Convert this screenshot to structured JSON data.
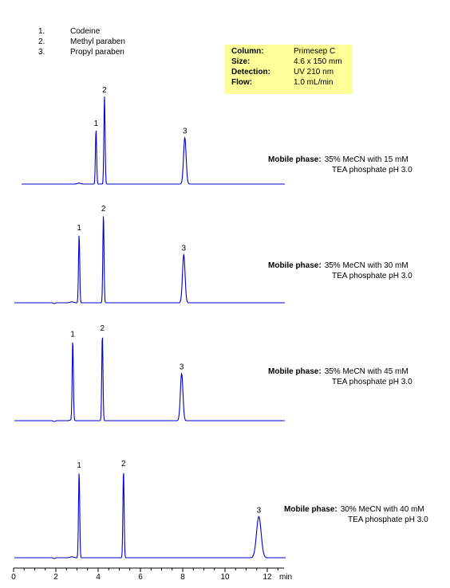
{
  "legend": [
    {
      "num": "1.",
      "name": "Codeine"
    },
    {
      "num": "2.",
      "name": "Methyl paraben"
    },
    {
      "num": "3.",
      "name": "Propyl paraben"
    }
  ],
  "conditions": [
    {
      "key": "Column:",
      "value": "Primesep C"
    },
    {
      "key": "Size:",
      "value": "4.6 x 150 mm"
    },
    {
      "key": "Detection:",
      "value": "UV 210 nm"
    },
    {
      "key": "Flow:",
      "value": "1.0 mL/min"
    }
  ],
  "colors": {
    "trace": "#0000cc",
    "peak_label": "#000000",
    "box": "#ffff99"
  },
  "chart_data": {
    "type": "line",
    "xlabel": "min",
    "xlim": [
      0,
      12.6
    ],
    "x_ticks": [
      "0",
      "2",
      "4",
      "6",
      "8",
      "10",
      "12"
    ],
    "grid": false,
    "series": [
      {
        "mobile_phase_label": "Mobile phase:",
        "mobile_phase_line1": "35% MeCN with 15 mM",
        "mobile_phase_line2": "TEA phosphate pH 3.0",
        "peaks": [
          {
            "label": "1",
            "rt": 3.9,
            "height": 0.62
          },
          {
            "label": "2",
            "rt": 4.3,
            "height": 1.0
          },
          {
            "label": "3",
            "rt": 8.1,
            "height": 0.53
          }
        ]
      },
      {
        "mobile_phase_label": "Mobile phase:",
        "mobile_phase_line1": "35% MeCN with 30 mM",
        "mobile_phase_line2": "TEA phosphate pH 3.0",
        "peaks": [
          {
            "label": "1",
            "rt": 3.1,
            "height": 0.78
          },
          {
            "label": "2",
            "rt": 4.25,
            "height": 1.0
          },
          {
            "label": "3",
            "rt": 8.05,
            "height": 0.55
          }
        ]
      },
      {
        "mobile_phase_label": "Mobile phase:",
        "mobile_phase_line1": "35% MeCN with 45 mM",
        "mobile_phase_line2": "TEA phosphate pH 3.0",
        "peaks": [
          {
            "label": "1",
            "rt": 2.8,
            "height": 0.93
          },
          {
            "label": "2",
            "rt": 4.2,
            "height": 1.0
          },
          {
            "label": "3",
            "rt": 7.95,
            "height": 0.55
          }
        ]
      },
      {
        "mobile_phase_label": "Mobile phase:",
        "mobile_phase_line1": "30% MeCN with 40 mM",
        "mobile_phase_line2": "TEA phosphate pH 3.0",
        "peaks": [
          {
            "label": "1",
            "rt": 3.1,
            "height": 0.98
          },
          {
            "label": "2",
            "rt": 5.2,
            "height": 1.0
          },
          {
            "label": "3",
            "rt": 11.6,
            "height": 0.47
          }
        ]
      }
    ]
  }
}
